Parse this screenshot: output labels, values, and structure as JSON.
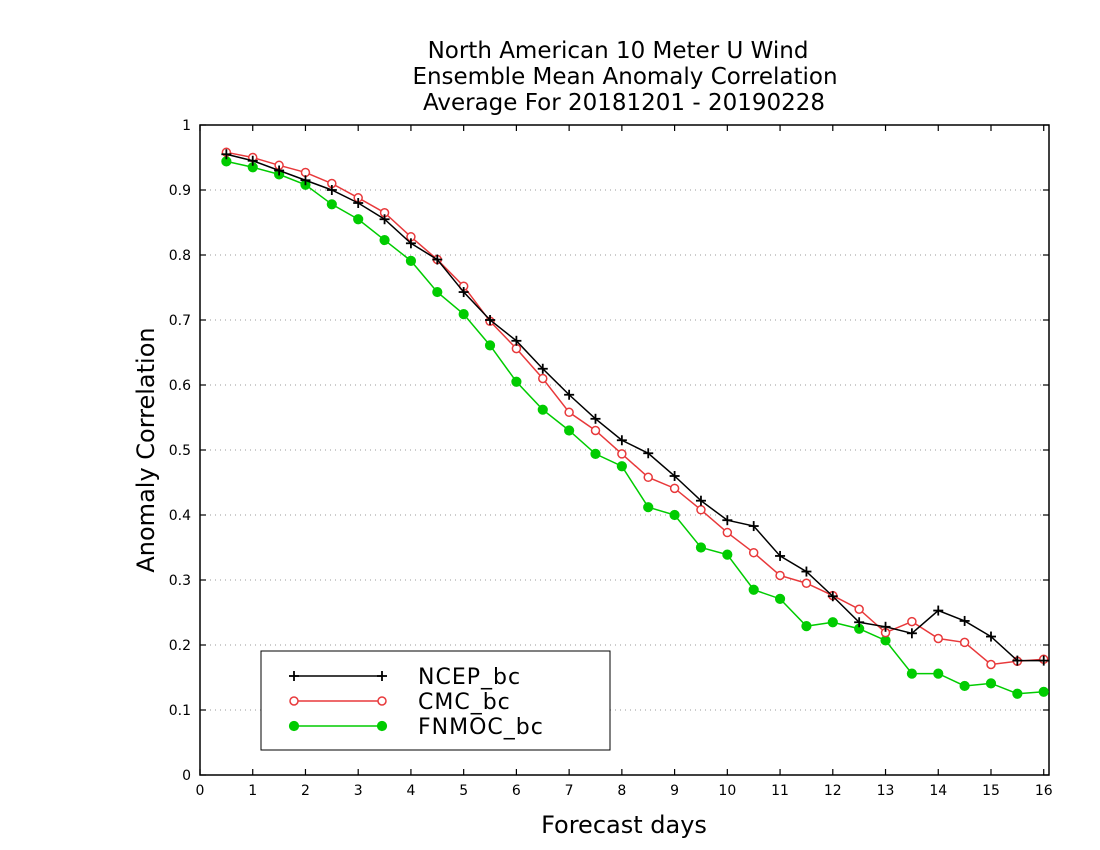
{
  "chart_data": {
    "type": "line",
    "title": [
      "North American 10 Meter U Wind",
      "Ensemble Mean Anomaly Correlation",
      "Average For 20181201 - 20190228"
    ],
    "xlabel": "Forecast days",
    "ylabel": "Anomaly Correlation",
    "xlim": [
      0,
      16.1
    ],
    "ylim": [
      0,
      1
    ],
    "xticks": [
      "0",
      "1",
      "2",
      "3",
      "4",
      "5",
      "6",
      "7",
      "8",
      "9",
      "10",
      "11",
      "12",
      "13",
      "14",
      "15",
      "16"
    ],
    "yticks": [
      "0",
      "0.1",
      "0.2",
      "0.3",
      "0.4",
      "0.5",
      "0.6",
      "0.7",
      "0.8",
      "0.9",
      "1"
    ],
    "grid": "horizontal dotted",
    "legend_position": "bottom-left",
    "x": [
      0.5,
      1,
      1.5,
      2,
      2.5,
      3,
      3.5,
      4,
      4.5,
      5,
      5.5,
      6,
      6.5,
      7,
      7.5,
      8,
      8.5,
      9,
      9.5,
      10,
      10.5,
      11,
      11.5,
      12,
      12.5,
      13,
      13.5,
      14,
      14.5,
      15,
      15.5,
      16
    ],
    "series": [
      {
        "name": "NCEP_bc",
        "color": "#000000",
        "marker": "plus",
        "values": [
          0.955,
          0.945,
          0.93,
          0.915,
          0.9,
          0.88,
          0.855,
          0.818,
          0.793,
          0.743,
          0.7,
          0.668,
          0.625,
          0.585,
          0.548,
          0.515,
          0.495,
          0.46,
          0.422,
          0.392,
          0.383,
          0.337,
          0.313,
          0.275,
          0.235,
          0.228,
          0.218,
          0.253,
          0.237,
          0.213,
          0.176,
          0.176
        ]
      },
      {
        "name": "CMC_bc",
        "color": "#e8393b",
        "marker": "open-circle",
        "values": [
          0.958,
          0.95,
          0.938,
          0.927,
          0.91,
          0.888,
          0.865,
          0.828,
          0.793,
          0.752,
          0.698,
          0.656,
          0.61,
          0.558,
          0.53,
          0.494,
          0.458,
          0.441,
          0.408,
          0.373,
          0.342,
          0.307,
          0.295,
          0.276,
          0.255,
          0.219,
          0.236,
          0.21,
          0.204,
          0.17,
          0.175,
          0.178
        ]
      },
      {
        "name": "FNMOC_bc",
        "color": "#00cc00",
        "marker": "filled-circle",
        "values": [
          0.944,
          0.935,
          0.924,
          0.908,
          0.878,
          0.855,
          0.823,
          0.791,
          0.743,
          0.709,
          0.661,
          0.605,
          0.562,
          0.53,
          0.494,
          0.475,
          0.412,
          0.4,
          0.35,
          0.339,
          0.285,
          0.271,
          0.229,
          0.235,
          0.225,
          0.207,
          0.156,
          0.156,
          0.137,
          0.141,
          0.125,
          0.128
        ]
      }
    ]
  }
}
